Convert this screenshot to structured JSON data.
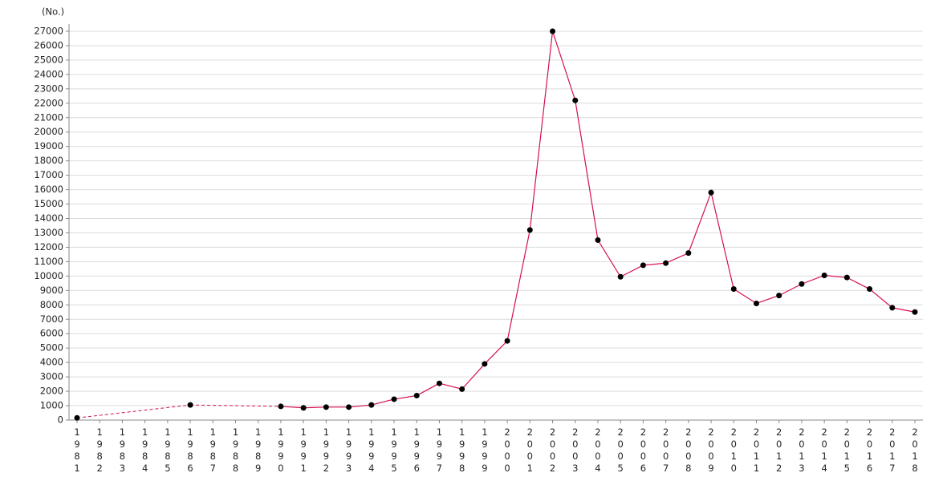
{
  "chart_data": {
    "type": "line",
    "y_label": "(No.)",
    "categories": [
      "1981",
      "1982",
      "1983",
      "1984",
      "1985",
      "1986",
      "1987",
      "1988",
      "1989",
      "1990",
      "1991",
      "1992",
      "1993",
      "1994",
      "1995",
      "1996",
      "1997",
      "1998",
      "1999",
      "2000",
      "2001",
      "2002",
      "2003",
      "2004",
      "2005",
      "2006",
      "2007",
      "2008",
      "2009",
      "2010",
      "2011",
      "2012",
      "2013",
      "2014",
      "2015",
      "2016",
      "2017",
      "2018"
    ],
    "values": [
      150,
      null,
      null,
      null,
      null,
      1050,
      null,
      null,
      null,
      950,
      850,
      900,
      900,
      1050,
      1450,
      1700,
      2550,
      2150,
      3900,
      5500,
      13200,
      27000,
      22200,
      12500,
      9950,
      10750,
      10900,
      11600,
      15800,
      9100,
      8100,
      8650,
      9450,
      10050,
      9900,
      9100,
      7800,
      7500
    ],
    "color": "#d6104e",
    "marker_color": "#000000",
    "ylim": [
      0,
      27500
    ],
    "yticks": [
      0,
      1000,
      2000,
      3000,
      4000,
      5000,
      6000,
      7000,
      8000,
      9000,
      10000,
      11000,
      12000,
      13000,
      14000,
      15000,
      16000,
      17000,
      18000,
      19000,
      20000,
      21000,
      22000,
      23000,
      24000,
      25000,
      26000,
      27000
    ],
    "grid": true
  }
}
